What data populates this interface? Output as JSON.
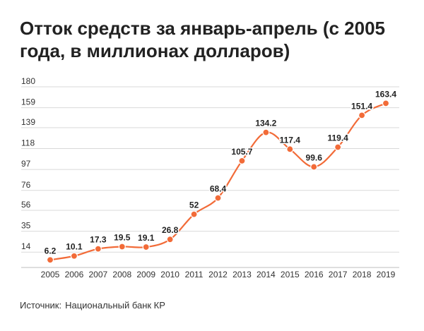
{
  "chart_data": {
    "type": "line",
    "title": "Отток средств за январь-апрель (с 2005 года, в миллионах долларов)",
    "x": [
      "2005",
      "2006",
      "2007",
      "2008",
      "2009",
      "2010",
      "2011",
      "2012",
      "2013",
      "2014",
      "2015",
      "2016",
      "2017",
      "2018",
      "2019"
    ],
    "values": [
      6.2,
      10.1,
      17.3,
      19.5,
      19.1,
      26.8,
      52,
      68.4,
      105.7,
      134.2,
      117.4,
      99.6,
      119.4,
      151.4,
      163.4
    ],
    "data_labels": [
      "6.2",
      "10.1",
      "17.3",
      "19.5",
      "19.1",
      "26.8",
      "52",
      "68.4",
      "105.7",
      "134.2",
      "117.4",
      "99.6",
      "119.4",
      "151.4",
      "163.4"
    ],
    "y_ticks": [
      14,
      35,
      56,
      76,
      97,
      118,
      139,
      159,
      180
    ],
    "ylim": [
      0,
      180
    ],
    "grid": true,
    "line_color": "#f26b38",
    "xlabel": "",
    "ylabel": ""
  },
  "source": {
    "label": "Источник:",
    "value": "Национальный банк КР"
  }
}
